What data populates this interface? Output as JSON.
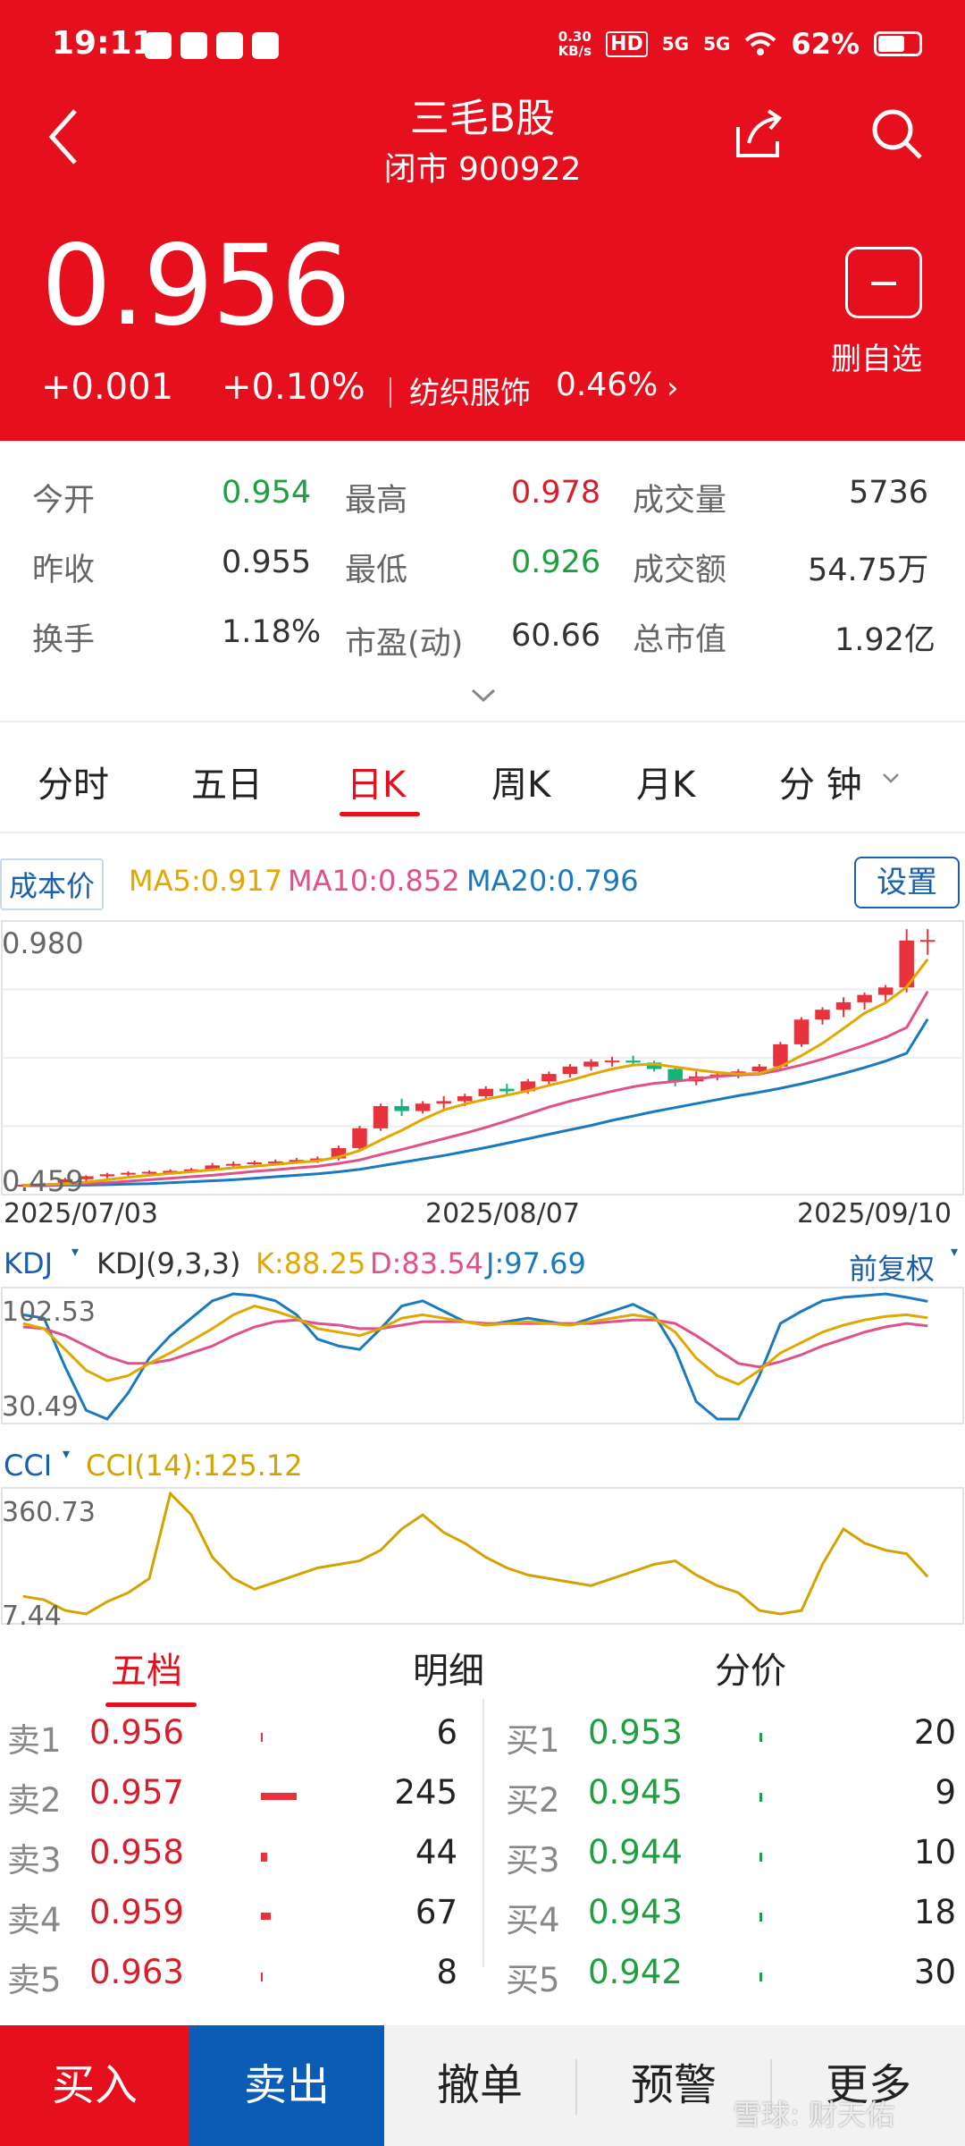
{
  "status_bar": {
    "time": "19:11",
    "net_speed_value": "0.30",
    "net_speed_unit": "KB/s",
    "hd": "HD",
    "sig1": "5G",
    "sig2": "5G",
    "battery": "62%"
  },
  "header": {
    "title": "三毛B股",
    "subtitle": "闭市 900922",
    "price": "0.956",
    "change": "+0.001",
    "change_pct": "+0.10%",
    "sector": "纺织服饰",
    "sector_pct": "0.46%",
    "sector_arrow": "›",
    "remove_label": "删自选"
  },
  "stats": {
    "open_label": "今开",
    "open": "0.954",
    "high_label": "最高",
    "high": "0.978",
    "volume_label": "成交量",
    "volume": "5736",
    "prev_close_label": "昨收",
    "prev_close": "0.955",
    "low_label": "最低",
    "low": "0.926",
    "amount_label": "成交额",
    "amount": "54.75万",
    "turnover_label": "换手",
    "turnover": "1.18%",
    "pe_label": "市盈(动)",
    "pe": "60.66",
    "mktcap_label": "总市值",
    "mktcap": "1.92亿"
  },
  "tabs": [
    "分时",
    "五日",
    "日K",
    "周K",
    "月K",
    "分 钟"
  ],
  "chart_header": {
    "cost_label": "成本价",
    "ma5": "MA5:0.917",
    "ma10": "MA10:0.852",
    "ma20": "MA20:0.796",
    "settings": "设置"
  },
  "price_axis": {
    "max": "0.980",
    "min": "0.459"
  },
  "dates": [
    "2025/07/03",
    "2025/08/07",
    "2025/09/10"
  ],
  "kdj_header": {
    "name": "KDJ",
    "params": "KDJ(9,3,3)",
    "k": "K:88.25",
    "d": "D:83.54",
    "j": "J:97.69",
    "adjust": "前复权",
    "max": "102.53",
    "min": "30.49"
  },
  "cci_header": {
    "name": "CCI",
    "value": "CCI(14):125.12",
    "max": "360.73",
    "min": "7.44"
  },
  "order_tabs": [
    "五档",
    "明细",
    "分价"
  ],
  "order_book": {
    "asks": [
      {
        "label": "卖1",
        "price": "0.956",
        "qty": "6"
      },
      {
        "label": "卖2",
        "price": "0.957",
        "qty": "245"
      },
      {
        "label": "卖3",
        "price": "0.958",
        "qty": "44"
      },
      {
        "label": "卖4",
        "price": "0.959",
        "qty": "67"
      },
      {
        "label": "卖5",
        "price": "0.963",
        "qty": "8"
      }
    ],
    "bids": [
      {
        "label": "买1",
        "price": "0.953",
        "qty": "20"
      },
      {
        "label": "买2",
        "price": "0.945",
        "qty": "9"
      },
      {
        "label": "买3",
        "price": "0.944",
        "qty": "10"
      },
      {
        "label": "买4",
        "price": "0.943",
        "qty": "18"
      },
      {
        "label": "买5",
        "price": "0.942",
        "qty": "30"
      }
    ]
  },
  "bottom_bar": {
    "buy": "买入",
    "sell": "卖出",
    "cancel": "撤单",
    "alert": "预警",
    "more": "更多"
  },
  "watermark": "雪球: 财天佑",
  "colors": {
    "brand_red": "#e50f1e",
    "up": "#d81e2c",
    "down": "#1fa040",
    "sell_blue": "#0a5cb5"
  },
  "chart_data": {
    "type": "candlestick",
    "ylim": [
      0.459,
      0.98
    ],
    "x_labels": [
      "2025/07/03",
      "2025/08/07",
      "2025/09/10"
    ],
    "candles": [
      [
        0.459,
        0.462,
        0.457,
        0.461
      ],
      [
        0.461,
        0.465,
        0.46,
        0.463
      ],
      [
        0.463,
        0.475,
        0.462,
        0.472
      ],
      [
        0.472,
        0.48,
        0.468,
        0.478
      ],
      [
        0.478,
        0.485,
        0.474,
        0.482
      ],
      [
        0.482,
        0.488,
        0.478,
        0.485
      ],
      [
        0.485,
        0.49,
        0.48,
        0.487
      ],
      [
        0.487,
        0.492,
        0.483,
        0.489
      ],
      [
        0.489,
        0.495,
        0.485,
        0.492
      ],
      [
        0.492,
        0.505,
        0.488,
        0.5
      ],
      [
        0.5,
        0.508,
        0.495,
        0.503
      ],
      [
        0.503,
        0.51,
        0.498,
        0.506
      ],
      [
        0.506,
        0.512,
        0.501,
        0.508
      ],
      [
        0.508,
        0.515,
        0.503,
        0.511
      ],
      [
        0.511,
        0.518,
        0.505,
        0.514
      ],
      [
        0.514,
        0.54,
        0.51,
        0.535
      ],
      [
        0.535,
        0.58,
        0.53,
        0.575
      ],
      [
        0.575,
        0.625,
        0.57,
        0.62
      ],
      [
        0.62,
        0.635,
        0.6,
        0.61
      ],
      [
        0.61,
        0.63,
        0.605,
        0.625
      ],
      [
        0.625,
        0.64,
        0.615,
        0.63
      ],
      [
        0.63,
        0.645,
        0.62,
        0.64
      ],
      [
        0.64,
        0.66,
        0.632,
        0.655
      ],
      [
        0.655,
        0.665,
        0.64,
        0.65
      ],
      [
        0.65,
        0.675,
        0.645,
        0.67
      ],
      [
        0.67,
        0.69,
        0.662,
        0.685
      ],
      [
        0.685,
        0.705,
        0.678,
        0.7
      ],
      [
        0.7,
        0.715,
        0.692,
        0.71
      ],
      [
        0.71,
        0.72,
        0.7,
        0.712
      ],
      [
        0.712,
        0.722,
        0.702,
        0.708
      ],
      [
        0.708,
        0.712,
        0.69,
        0.695
      ],
      [
        0.695,
        0.7,
        0.66,
        0.67
      ],
      [
        0.67,
        0.69,
        0.662,
        0.68
      ],
      [
        0.68,
        0.69,
        0.672,
        0.684
      ],
      [
        0.684,
        0.695,
        0.676,
        0.69
      ],
      [
        0.69,
        0.705,
        0.682,
        0.7
      ],
      [
        0.7,
        0.75,
        0.695,
        0.745
      ],
      [
        0.745,
        0.8,
        0.74,
        0.795
      ],
      [
        0.795,
        0.82,
        0.785,
        0.815
      ],
      [
        0.815,
        0.84,
        0.8,
        0.83
      ],
      [
        0.83,
        0.85,
        0.815,
        0.845
      ],
      [
        0.845,
        0.865,
        0.83,
        0.86
      ],
      [
        0.86,
        0.978,
        0.85,
        0.955
      ],
      [
        0.954,
        0.978,
        0.926,
        0.956
      ]
    ],
    "ma5": [
      0.46,
      0.461,
      0.463,
      0.466,
      0.471,
      0.476,
      0.48,
      0.484,
      0.487,
      0.491,
      0.495,
      0.498,
      0.502,
      0.506,
      0.509,
      0.517,
      0.53,
      0.551,
      0.571,
      0.593,
      0.612,
      0.624,
      0.634,
      0.642,
      0.651,
      0.662,
      0.672,
      0.684,
      0.695,
      0.703,
      0.705,
      0.699,
      0.693,
      0.688,
      0.685,
      0.686,
      0.7,
      0.722,
      0.747,
      0.777,
      0.808,
      0.829,
      0.861,
      0.917
    ],
    "ma10": [
      0.459,
      0.46,
      0.461,
      0.463,
      0.465,
      0.468,
      0.471,
      0.474,
      0.477,
      0.48,
      0.484,
      0.488,
      0.491,
      0.495,
      0.498,
      0.504,
      0.511,
      0.522,
      0.532,
      0.543,
      0.554,
      0.565,
      0.577,
      0.59,
      0.604,
      0.618,
      0.63,
      0.64,
      0.65,
      0.659,
      0.666,
      0.67,
      0.675,
      0.68,
      0.683,
      0.685,
      0.693,
      0.703,
      0.715,
      0.729,
      0.743,
      0.759,
      0.779,
      0.852
    ],
    "ma20": [
      0.459,
      0.459,
      0.46,
      0.46,
      0.461,
      0.462,
      0.463,
      0.465,
      0.467,
      0.469,
      0.471,
      0.474,
      0.477,
      0.48,
      0.483,
      0.487,
      0.492,
      0.499,
      0.506,
      0.513,
      0.52,
      0.528,
      0.536,
      0.545,
      0.554,
      0.563,
      0.572,
      0.581,
      0.591,
      0.6,
      0.609,
      0.617,
      0.625,
      0.633,
      0.641,
      0.648,
      0.656,
      0.665,
      0.675,
      0.686,
      0.698,
      0.711,
      0.727,
      0.796
    ],
    "kdj": {
      "ylim": [
        30.49,
        102.53
      ],
      "k": [
        85,
        82,
        70,
        58,
        52,
        55,
        62,
        68,
        75,
        82,
        90,
        95,
        92,
        88,
        82,
        80,
        78,
        82,
        88,
        90,
        88,
        86,
        84,
        85,
        86,
        85,
        84,
        86,
        88,
        90,
        88,
        80,
        65,
        55,
        50,
        58,
        68,
        74,
        80,
        84,
        87,
        89,
        90,
        88.25
      ],
      "d": [
        83,
        82,
        78,
        72,
        66,
        62,
        62,
        64,
        68,
        72,
        78,
        83,
        86,
        87,
        85,
        84,
        82,
        82,
        84,
        86,
        86,
        86,
        85,
        85,
        85,
        85,
        85,
        85,
        86,
        87,
        87,
        85,
        78,
        70,
        62,
        60,
        63,
        67,
        72,
        76,
        80,
        83,
        85,
        83.54
      ],
      "j": [
        90,
        88,
        60,
        35,
        30,
        45,
        65,
        78,
        88,
        98,
        102,
        101,
        98,
        90,
        76,
        72,
        70,
        82,
        95,
        98,
        92,
        86,
        84,
        86,
        88,
        86,
        84,
        88,
        92,
        96,
        90,
        70,
        40,
        30,
        30,
        55,
        85,
        92,
        98,
        100,
        101,
        102,
        100,
        97.69
      ]
    },
    "cci": {
      "ylim": [
        7.44,
        360.73
      ],
      "values": [
        70,
        60,
        30,
        20,
        55,
        80,
        120,
        360,
        300,
        180,
        120,
        90,
        110,
        130,
        150,
        160,
        170,
        200,
        260,
        300,
        250,
        220,
        180,
        150,
        130,
        120,
        110,
        100,
        120,
        140,
        160,
        170,
        130,
        100,
        80,
        30,
        20,
        30,
        160,
        260,
        220,
        200,
        190,
        125.12
      ]
    }
  }
}
